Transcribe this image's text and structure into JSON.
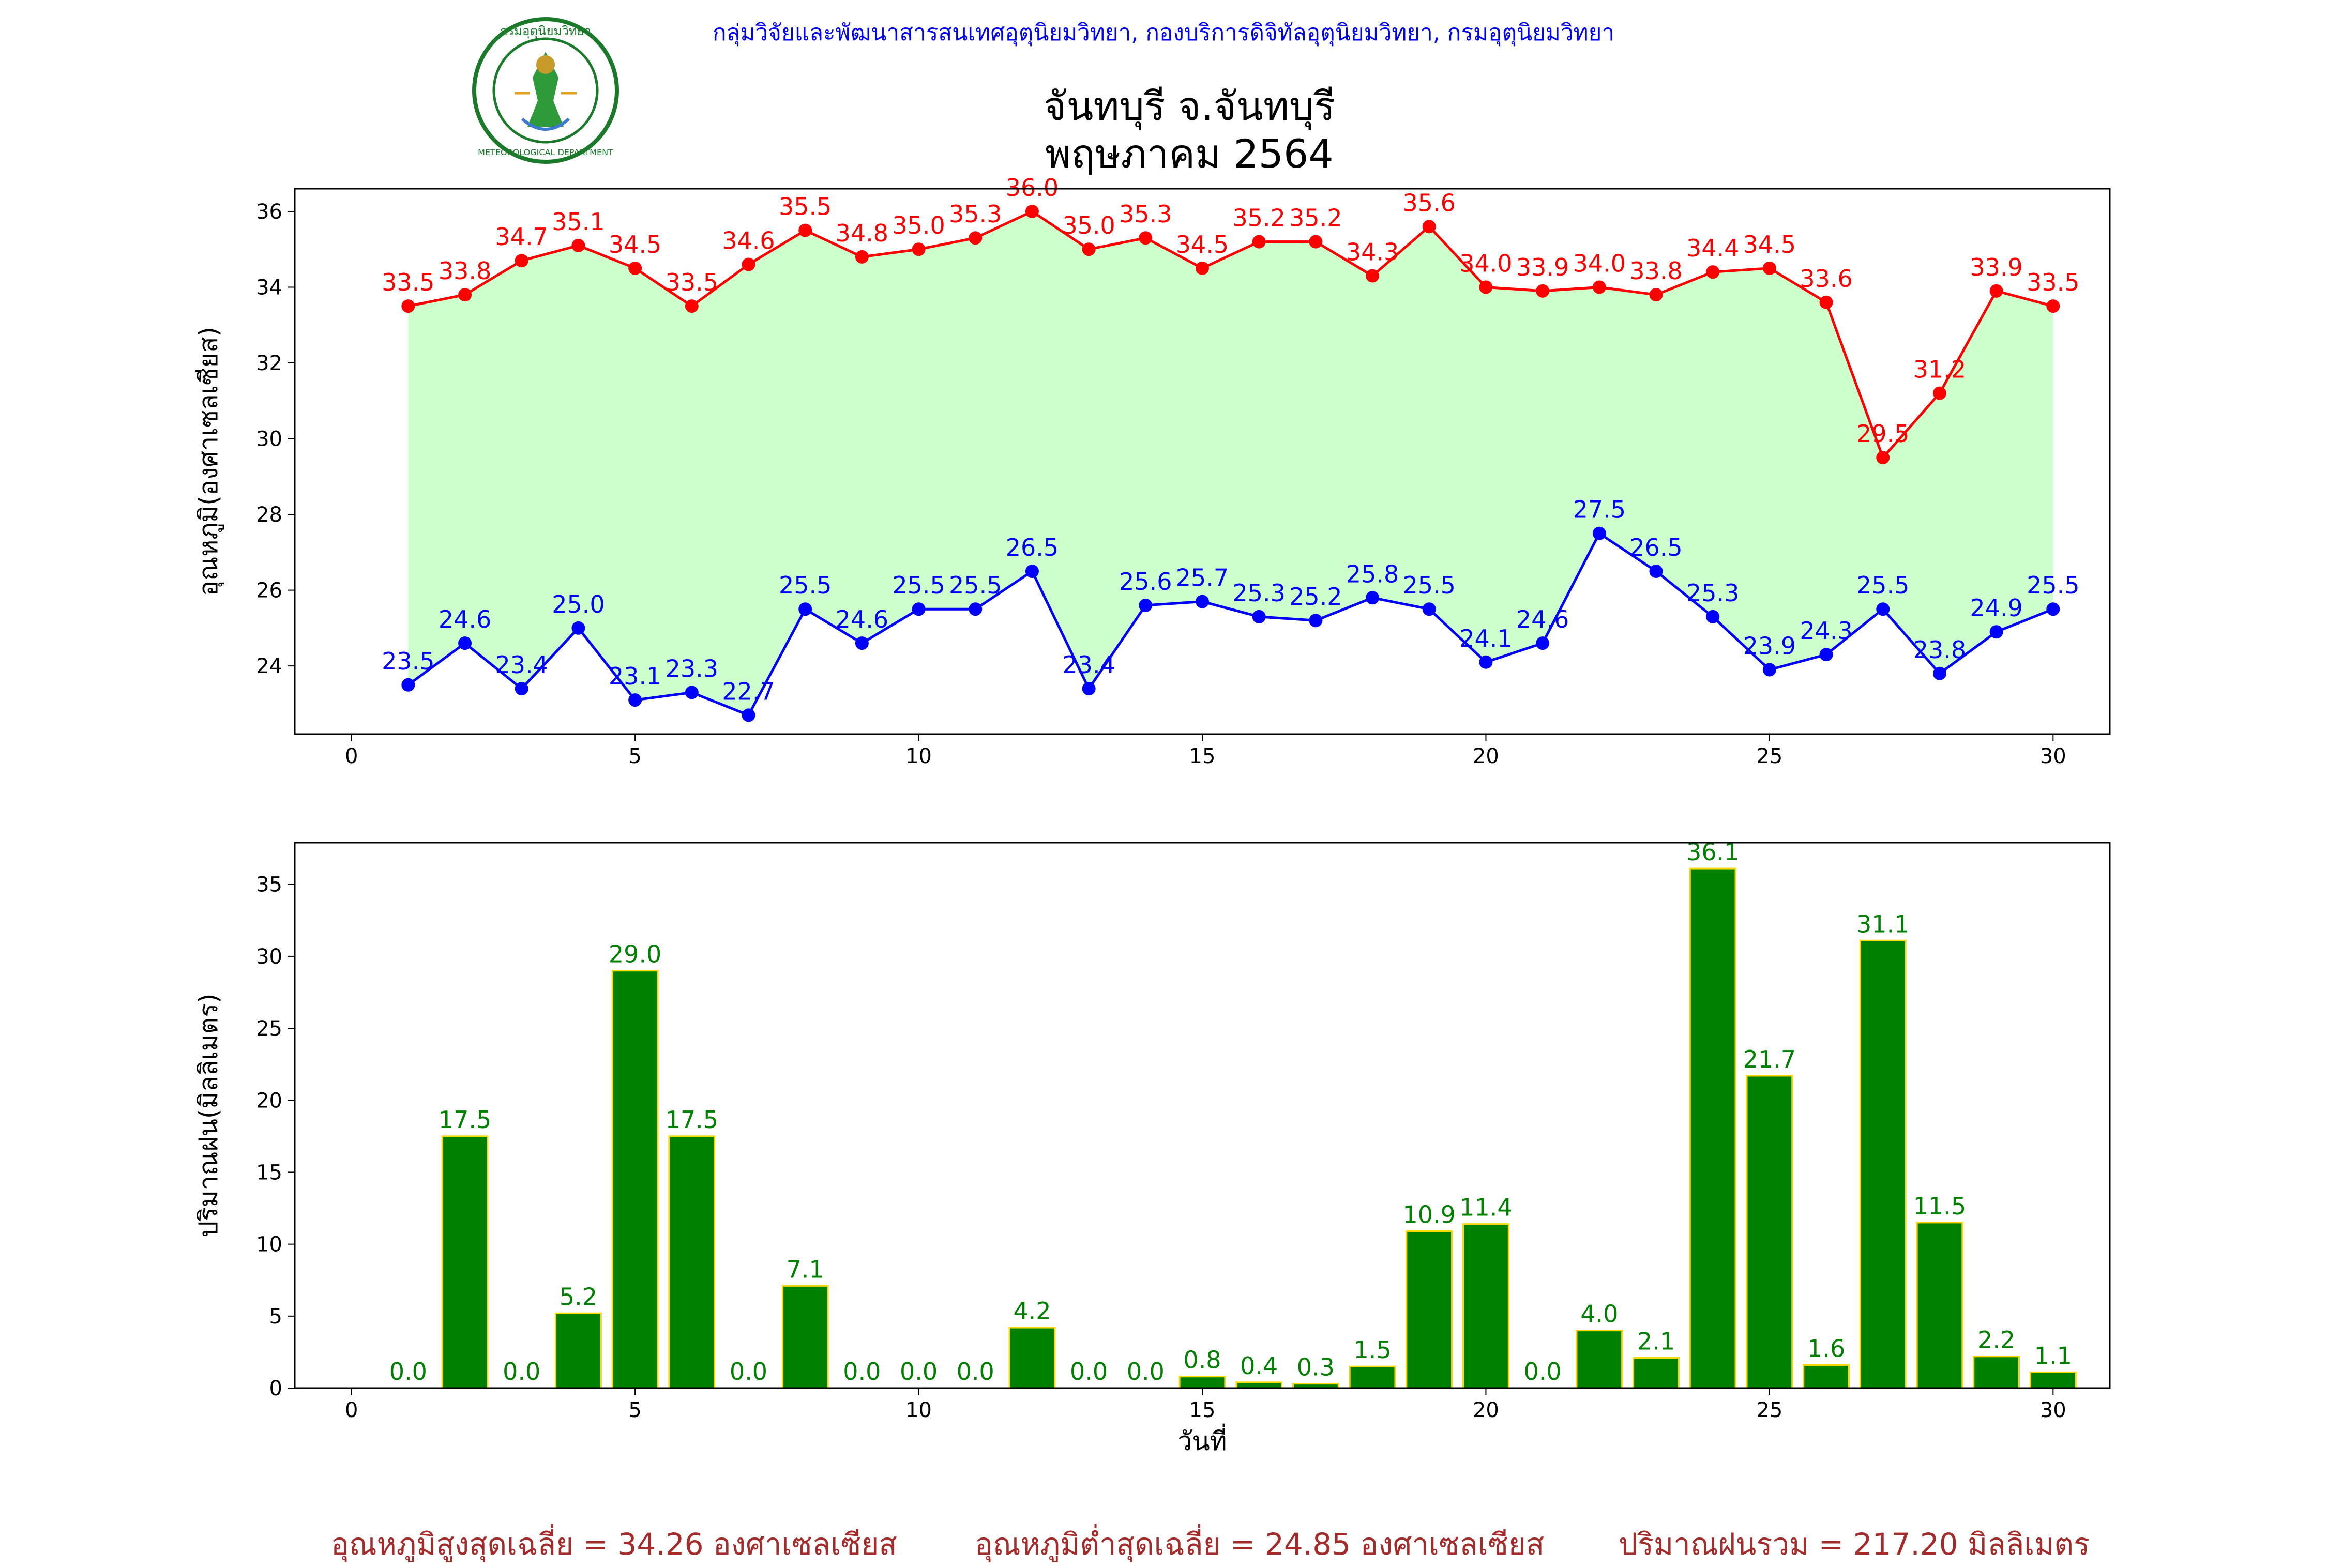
{
  "header": {
    "agency": "กลุ่มวิจัยและพัฒนาสารสนเทศอุตุนิยมวิทยา, กองบริการดิจิทัลอุตุนิยมวิทยา, กรมอุตุนิยมวิทยา",
    "logo_text_top": "กรมอุตุนิยมวิทยา",
    "logo_text_bottom": "METEOROLOGICAL DEPARTMENT",
    "title_line1": "จันทบุรี จ.จันทบุรี",
    "title_line2": "พฤษภาคม 2564"
  },
  "footer": {
    "avg_max": "อุณหภูมิสูงสุดเฉลี่ย = 34.26 องศาเซลเซียส",
    "avg_min": "อุณหภูมิต่ำสุดเฉลี่ย = 24.85 องศาเซลเซียส",
    "total_rain": "ปริมาณฝนรวม = 217.20 มิลลิเมตร"
  },
  "colors": {
    "max_line": "#ff0000",
    "min_line": "#0000ff",
    "fill": "#ccffcc",
    "rain_bar": "#008000",
    "rain_edge": "#ffd700",
    "rain_label": "#008000",
    "footer": "#a52a2a"
  },
  "chart_data": [
    {
      "type": "line",
      "ylabel": "อุณหภูมิ(องศาเซลเซียส)",
      "xlabel": "",
      "xlim": [
        -1,
        31
      ],
      "ylim": [
        22.2,
        36.6
      ],
      "xticks": [
        0,
        5,
        10,
        15,
        20,
        25,
        30
      ],
      "yticks": [
        24,
        26,
        28,
        30,
        32,
        34,
        36
      ],
      "x": [
        1,
        2,
        3,
        4,
        5,
        6,
        7,
        8,
        9,
        10,
        11,
        12,
        13,
        14,
        15,
        16,
        17,
        18,
        19,
        20,
        21,
        22,
        23,
        24,
        25,
        26,
        27,
        28,
        29,
        30
      ],
      "series": [
        {
          "key": "max",
          "values": [
            33.5,
            33.8,
            34.7,
            35.1,
            34.5,
            33.5,
            34.6,
            35.5,
            34.8,
            35.0,
            35.3,
            36.0,
            35.0,
            35.3,
            34.5,
            35.2,
            35.2,
            34.3,
            35.6,
            34.0,
            33.9,
            34.0,
            33.8,
            34.4,
            34.5,
            33.6,
            29.5,
            31.2,
            33.9,
            33.5
          ]
        },
        {
          "key": "min",
          "values": [
            23.5,
            24.6,
            23.4,
            25.0,
            23.1,
            23.3,
            22.7,
            25.5,
            24.6,
            25.5,
            25.5,
            26.5,
            23.4,
            25.6,
            25.7,
            25.3,
            25.2,
            25.8,
            25.5,
            24.1,
            24.6,
            27.5,
            26.5,
            25.3,
            23.9,
            24.3,
            25.5,
            23.8,
            24.9,
            25.5
          ]
        }
      ],
      "grid": false
    },
    {
      "type": "bar",
      "ylabel": "ปริมาณฝน(มิลลิเมตร)",
      "xlabel": "วันที่",
      "xlim": [
        -1,
        31
      ],
      "ylim": [
        0,
        37.9
      ],
      "xticks": [
        0,
        5,
        10,
        15,
        20,
        25,
        30
      ],
      "yticks": [
        0,
        5,
        10,
        15,
        20,
        25,
        30,
        35
      ],
      "x": [
        1,
        2,
        3,
        4,
        5,
        6,
        7,
        8,
        9,
        10,
        11,
        12,
        13,
        14,
        15,
        16,
        17,
        18,
        19,
        20,
        21,
        22,
        23,
        24,
        25,
        26,
        27,
        28,
        29,
        30
      ],
      "values": [
        0.0,
        17.5,
        0.0,
        5.2,
        29.0,
        17.5,
        0.0,
        7.1,
        0.0,
        0.0,
        0.0,
        4.2,
        0.0,
        0.0,
        0.8,
        0.4,
        0.3,
        1.5,
        10.9,
        11.4,
        0.0,
        4.0,
        2.1,
        36.1,
        21.7,
        1.6,
        31.1,
        11.5,
        2.2,
        1.1
      ],
      "grid": false
    }
  ]
}
